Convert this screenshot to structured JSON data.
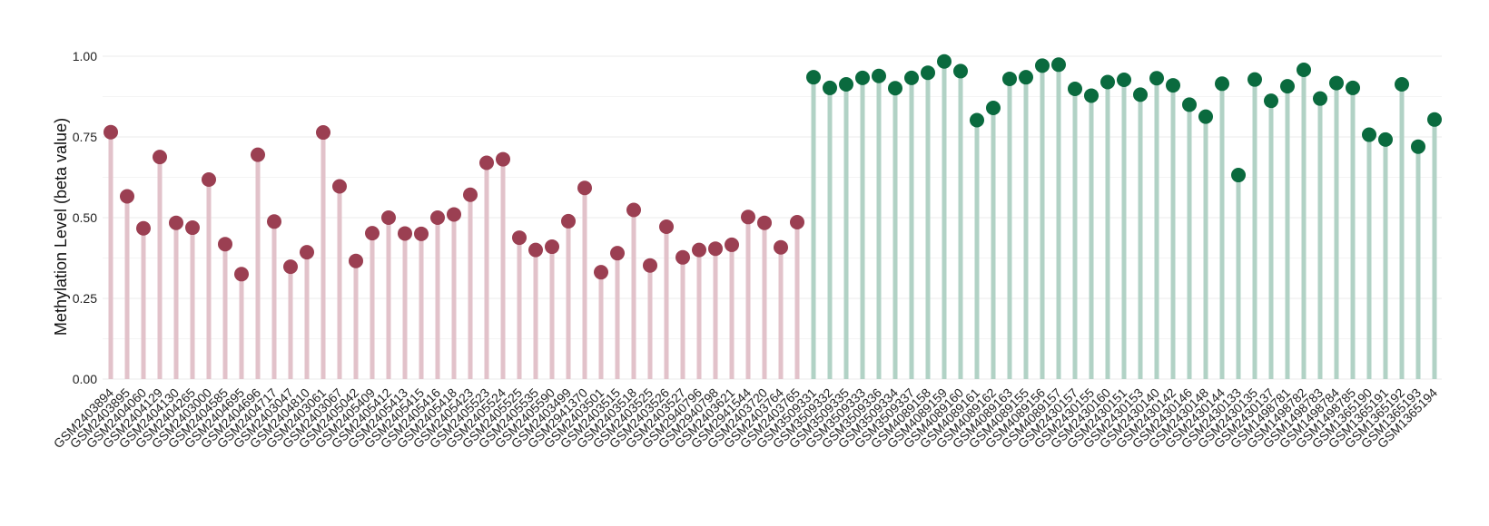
{
  "chart_data": {
    "type": "lollipop",
    "ylabel": "Methylation Level (beta value)",
    "ylim": [
      0,
      1
    ],
    "yticks": [
      0.0,
      0.25,
      0.5,
      0.75,
      1.0
    ],
    "ytick_labels": [
      "0.00",
      "0.25",
      "0.50",
      "0.75",
      "1.00"
    ],
    "grid": true,
    "legend": "none",
    "groups": [
      {
        "color": "#9b3f52",
        "stem_color": "#e2c2ca"
      },
      {
        "color": "#0a6a3e",
        "stem_color": "#b1d2c5"
      }
    ],
    "samples": [
      {
        "label": "GSM2403894",
        "value": 0.765,
        "group": 0
      },
      {
        "label": "GSM2403895",
        "value": 0.566,
        "group": 0
      },
      {
        "label": "GSM2404060",
        "value": 0.467,
        "group": 0
      },
      {
        "label": "GSM2404129",
        "value": 0.688,
        "group": 0
      },
      {
        "label": "GSM2404130",
        "value": 0.484,
        "group": 0
      },
      {
        "label": "GSM2404265",
        "value": 0.469,
        "group": 0
      },
      {
        "label": "GSM2403000",
        "value": 0.618,
        "group": 0
      },
      {
        "label": "GSM2404585",
        "value": 0.418,
        "group": 0
      },
      {
        "label": "GSM2404695",
        "value": 0.325,
        "group": 0
      },
      {
        "label": "GSM2404696",
        "value": 0.695,
        "group": 0
      },
      {
        "label": "GSM2404717",
        "value": 0.488,
        "group": 0
      },
      {
        "label": "GSM2403047",
        "value": 0.348,
        "group": 0
      },
      {
        "label": "GSM2404810",
        "value": 0.393,
        "group": 0
      },
      {
        "label": "GSM2403061",
        "value": 0.764,
        "group": 0
      },
      {
        "label": "GSM2403067",
        "value": 0.597,
        "group": 0
      },
      {
        "label": "GSM2405042",
        "value": 0.366,
        "group": 0
      },
      {
        "label": "GSM2405409",
        "value": 0.452,
        "group": 0
      },
      {
        "label": "GSM2405412",
        "value": 0.5,
        "group": 0
      },
      {
        "label": "GSM2405413",
        "value": 0.451,
        "group": 0
      },
      {
        "label": "GSM2405415",
        "value": 0.45,
        "group": 0
      },
      {
        "label": "GSM2405416",
        "value": 0.5,
        "group": 0
      },
      {
        "label": "GSM2405418",
        "value": 0.51,
        "group": 0
      },
      {
        "label": "GSM2405423",
        "value": 0.571,
        "group": 0
      },
      {
        "label": "GSM2405523",
        "value": 0.67,
        "group": 0
      },
      {
        "label": "GSM2405524",
        "value": 0.681,
        "group": 0
      },
      {
        "label": "GSM2405525",
        "value": 0.438,
        "group": 0
      },
      {
        "label": "GSM2405535",
        "value": 0.4,
        "group": 0
      },
      {
        "label": "GSM2405590",
        "value": 0.41,
        "group": 0
      },
      {
        "label": "GSM2403499",
        "value": 0.489,
        "group": 0
      },
      {
        "label": "GSM2941370",
        "value": 0.592,
        "group": 0
      },
      {
        "label": "GSM2403501",
        "value": 0.331,
        "group": 0
      },
      {
        "label": "GSM2403515",
        "value": 0.39,
        "group": 0
      },
      {
        "label": "GSM2403518",
        "value": 0.524,
        "group": 0
      },
      {
        "label": "GSM2403525",
        "value": 0.352,
        "group": 0
      },
      {
        "label": "GSM2403526",
        "value": 0.472,
        "group": 0
      },
      {
        "label": "GSM2403527",
        "value": 0.377,
        "group": 0
      },
      {
        "label": "GSM2940796",
        "value": 0.4,
        "group": 0
      },
      {
        "label": "GSM2940798",
        "value": 0.404,
        "group": 0
      },
      {
        "label": "GSM2403621",
        "value": 0.416,
        "group": 0
      },
      {
        "label": "GSM2941544",
        "value": 0.502,
        "group": 0
      },
      {
        "label": "GSM2403720",
        "value": 0.484,
        "group": 0
      },
      {
        "label": "GSM2403764",
        "value": 0.408,
        "group": 0
      },
      {
        "label": "GSM2403765",
        "value": 0.486,
        "group": 0
      },
      {
        "label": "GSM3509331",
        "value": 0.935,
        "group": 1
      },
      {
        "label": "GSM3509332",
        "value": 0.902,
        "group": 1
      },
      {
        "label": "GSM3509335",
        "value": 0.913,
        "group": 1
      },
      {
        "label": "GSM3509333",
        "value": 0.933,
        "group": 1
      },
      {
        "label": "GSM3509336",
        "value": 0.939,
        "group": 1
      },
      {
        "label": "GSM3509334",
        "value": 0.901,
        "group": 1
      },
      {
        "label": "GSM3509337",
        "value": 0.933,
        "group": 1
      },
      {
        "label": "GSM4089158",
        "value": 0.949,
        "group": 1
      },
      {
        "label": "GSM4089159",
        "value": 0.984,
        "group": 1
      },
      {
        "label": "GSM4089160",
        "value": 0.954,
        "group": 1
      },
      {
        "label": "GSM4089161",
        "value": 0.802,
        "group": 1
      },
      {
        "label": "GSM4089162",
        "value": 0.84,
        "group": 1
      },
      {
        "label": "GSM4089163",
        "value": 0.93,
        "group": 1
      },
      {
        "label": "GSM4089155",
        "value": 0.935,
        "group": 1
      },
      {
        "label": "GSM4089156",
        "value": 0.971,
        "group": 1
      },
      {
        "label": "GSM4089157",
        "value": 0.974,
        "group": 1
      },
      {
        "label": "GSM2430157",
        "value": 0.899,
        "group": 1
      },
      {
        "label": "GSM2430155",
        "value": 0.878,
        "group": 1
      },
      {
        "label": "GSM2430160",
        "value": 0.92,
        "group": 1
      },
      {
        "label": "GSM2430151",
        "value": 0.927,
        "group": 1
      },
      {
        "label": "GSM2430153",
        "value": 0.881,
        "group": 1
      },
      {
        "label": "GSM2430140",
        "value": 0.932,
        "group": 1
      },
      {
        "label": "GSM2430142",
        "value": 0.91,
        "group": 1
      },
      {
        "label": "GSM2430146",
        "value": 0.85,
        "group": 1
      },
      {
        "label": "GSM2430148",
        "value": 0.813,
        "group": 1
      },
      {
        "label": "GSM2430144",
        "value": 0.915,
        "group": 1
      },
      {
        "label": "GSM2430133",
        "value": 0.632,
        "group": 1
      },
      {
        "label": "GSM2430135",
        "value": 0.928,
        "group": 1
      },
      {
        "label": "GSM2430137",
        "value": 0.862,
        "group": 1
      },
      {
        "label": "GSM1498781",
        "value": 0.907,
        "group": 1
      },
      {
        "label": "GSM1498782",
        "value": 0.958,
        "group": 1
      },
      {
        "label": "GSM1498783",
        "value": 0.869,
        "group": 1
      },
      {
        "label": "GSM1498784",
        "value": 0.917,
        "group": 1
      },
      {
        "label": "GSM1498785",
        "value": 0.902,
        "group": 1
      },
      {
        "label": "GSM1365190",
        "value": 0.757,
        "group": 1
      },
      {
        "label": "GSM1365191",
        "value": 0.742,
        "group": 1
      },
      {
        "label": "GSM1365192",
        "value": 0.913,
        "group": 1
      },
      {
        "label": "GSM1365193",
        "value": 0.72,
        "group": 1
      },
      {
        "label": "GSM1365194",
        "value": 0.804,
        "group": 1
      }
    ]
  }
}
